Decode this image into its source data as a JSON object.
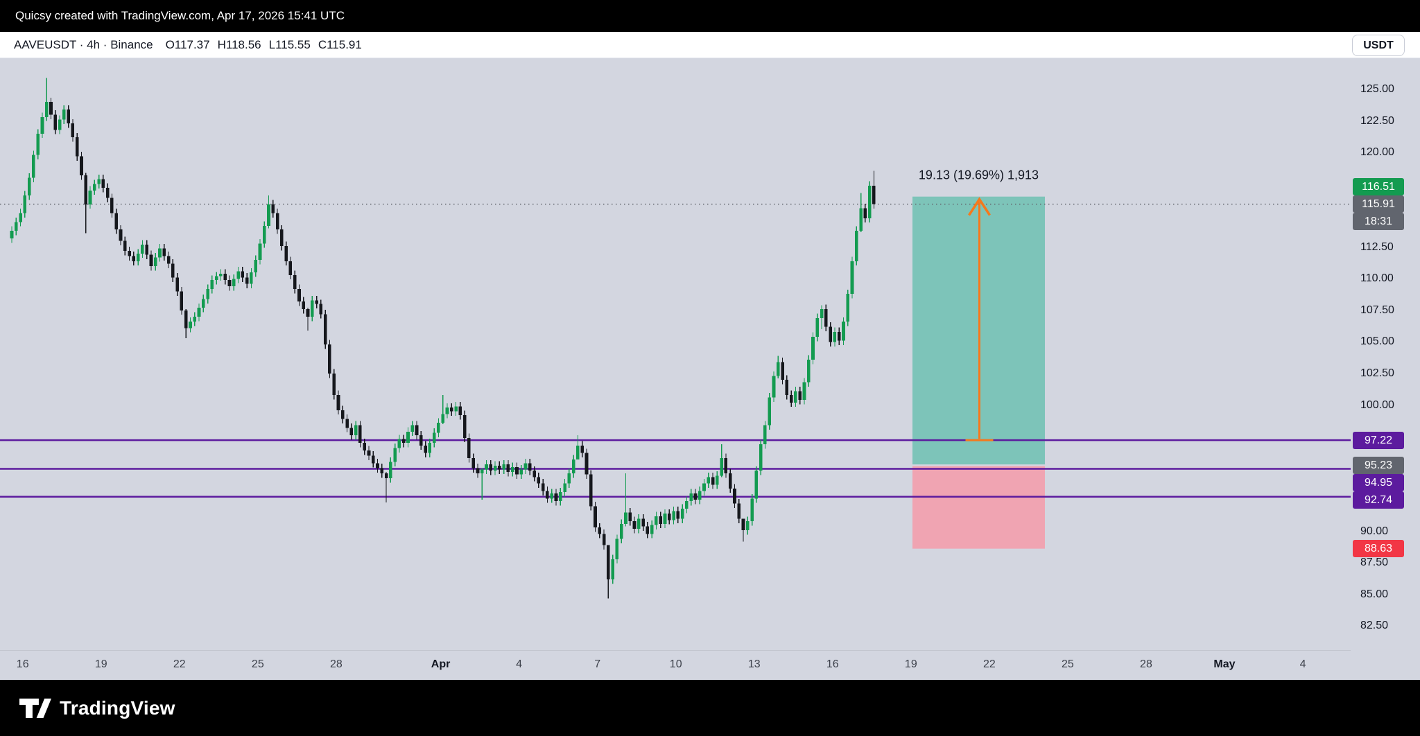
{
  "top_bar": {
    "text": "Quicsy created with TradingView.com, Apr 17, 2026 15:41 UTC"
  },
  "legend": {
    "symbol_line": "AAVEUSDT · 4h · Binance",
    "o": "O117.37",
    "h": "H118.56",
    "l": "L115.55",
    "c": "C115.91"
  },
  "currency_button": "USDT",
  "footer": {
    "brand": "TradingView"
  },
  "colors": {
    "background": "#d3d6e0",
    "up_candle": "#139b50",
    "down_candle": "#15171c",
    "level_purple": "#5c1b9e",
    "profit_zone": "#7dc4b9",
    "loss_zone": "#f0a4b2",
    "arrow_orange": "#f5791d",
    "green_badge": "#139b50",
    "gray_badge": "#61656e",
    "red_badge": "#f23645",
    "text": "#131722"
  },
  "chart_data": {
    "type": "candlestick",
    "title": "AAVEUSDT · 4h · Binance",
    "symbol": "AAVEUSDT",
    "interval": "4h",
    "exchange": "Binance",
    "ohlc_display": {
      "open": "117.37",
      "high": "118.56",
      "low": "115.55",
      "close": "115.91"
    },
    "ylim": [
      81.5,
      127
    ],
    "grid": false,
    "legend_position": "top-left",
    "first_open": 113.2,
    "default_wick": 0.35,
    "closes": [
      113.8,
      114.5,
      115.2,
      116.6,
      118.0,
      119.8,
      121.5,
      122.8,
      124.0,
      123.0,
      121.8,
      122.6,
      123.4,
      122.3,
      121.2,
      119.7,
      118.2,
      115.9,
      117.0,
      117.5,
      117.9,
      117.2,
      116.4,
      115.2,
      113.9,
      113.0,
      112.2,
      111.8,
      111.4,
      112.0,
      112.7,
      111.9,
      111.0,
      111.7,
      112.4,
      111.8,
      111.2,
      110.1,
      109.0,
      107.5,
      106.1,
      106.6,
      107.0,
      107.7,
      108.4,
      109.2,
      109.9,
      110.2,
      110.4,
      109.9,
      109.4,
      110.0,
      110.6,
      110.1,
      109.6,
      110.5,
      111.5,
      112.8,
      114.2,
      115.9,
      115.2,
      113.9,
      112.6,
      111.4,
      110.3,
      109.2,
      108.2,
      107.6,
      107.0,
      108.3,
      108.0,
      107.2,
      104.8,
      102.5,
      100.8,
      99.6,
      98.9,
      98.2,
      97.6,
      98.4,
      97.0,
      96.4,
      96.0,
      95.4,
      95.0,
      94.6,
      94.2,
      95.5,
      96.6,
      97.3,
      97.0,
      97.9,
      98.4,
      97.6,
      96.8,
      96.2,
      97.0,
      97.8,
      98.6,
      99.3,
      99.8,
      99.5,
      99.9,
      99.2,
      97.4,
      95.8,
      95.0,
      94.6,
      94.9,
      95.3,
      94.8,
      95.2,
      94.9,
      95.3,
      94.7,
      95.1,
      94.5,
      94.9,
      95.4,
      94.8,
      94.3,
      93.8,
      93.2,
      92.6,
      93.0,
      92.4,
      93.1,
      93.8,
      94.6,
      95.7,
      96.8,
      96.2,
      94.5,
      92.0,
      90.3,
      89.8,
      88.9,
      86.2,
      87.8,
      89.4,
      90.6,
      91.5,
      90.8,
      90.2,
      91.0,
      90.4,
      89.8,
      90.5,
      91.2,
      90.6,
      91.4,
      90.9,
      91.6,
      91.0,
      91.8,
      92.4,
      93.0,
      92.5,
      93.2,
      93.8,
      94.3,
      93.7,
      94.4,
      95.8,
      94.6,
      93.4,
      92.2,
      91.0,
      90.1,
      90.8,
      92.6,
      94.8,
      96.9,
      98.4,
      100.6,
      102.3,
      103.4,
      102.0,
      100.8,
      100.2,
      101.1,
      100.4,
      101.8,
      103.6,
      105.4,
      106.9,
      107.6,
      106.2,
      105.0,
      105.8,
      105.1,
      106.6,
      108.8,
      111.4,
      113.8,
      115.6,
      114.8,
      117.37,
      115.91
    ],
    "wick_overrides": {
      "8": [
        125.9,
        122.5
      ],
      "17": [
        118.4,
        113.6
      ],
      "40": [
        107.6,
        105.3
      ],
      "59": [
        116.6,
        114.0
      ],
      "68": [
        107.7,
        105.9
      ],
      "86": [
        94.7,
        92.3
      ],
      "99": [
        100.8,
        98.5
      ],
      "108": [
        95.0,
        92.5
      ],
      "130": [
        97.6,
        95.9
      ],
      "137": [
        88.9,
        84.7
      ],
      "141": [
        94.6,
        90.4
      ],
      "163": [
        96.9,
        94.3
      ],
      "168": [
        90.9,
        89.2
      ],
      "176": [
        103.9,
        102.1
      ],
      "186": [
        107.9,
        106.0
      ],
      "195": [
        116.8,
        113.7
      ],
      "198": [
        118.56,
        115.55
      ]
    },
    "horizontal_levels": [
      97.22,
      94.95,
      92.74
    ],
    "last_price_line": 115.91,
    "position_tool": {
      "label": "19.13 (19.69%) 1,913",
      "zone_top_price": 116.51,
      "entry_price": 95.23,
      "stop_price": 88.63,
      "arrow_base_price": 97.22,
      "arrow_tip_price": 116.3
    },
    "y_axis_ticks": [
      {
        "price": 125,
        "label": "125.00"
      },
      {
        "price": 122.5,
        "label": "122.50"
      },
      {
        "price": 120,
        "label": "120.00"
      },
      {
        "price": 112.5,
        "label": "112.50"
      },
      {
        "price": 110,
        "label": "110.00"
      },
      {
        "price": 107.5,
        "label": "107.50"
      },
      {
        "price": 105,
        "label": "105.00"
      },
      {
        "price": 102.5,
        "label": "102.50"
      },
      {
        "price": 100,
        "label": "100.00"
      },
      {
        "price": 90,
        "label": "90.00"
      },
      {
        "price": 87.5,
        "label": "87.50"
      },
      {
        "price": 85,
        "label": "85.00"
      },
      {
        "price": 82.5,
        "label": "82.50"
      }
    ],
    "x_axis_ticks": [
      {
        "i": 2.5,
        "label": "16",
        "bold": false
      },
      {
        "i": 20.5,
        "label": "19",
        "bold": false
      },
      {
        "i": 38.5,
        "label": "22",
        "bold": false
      },
      {
        "i": 56.5,
        "label": "25",
        "bold": false
      },
      {
        "i": 74.5,
        "label": "28",
        "bold": false
      },
      {
        "i": 98.5,
        "label": "Apr",
        "bold": true
      },
      {
        "i": 116.5,
        "label": "4",
        "bold": false
      },
      {
        "i": 134.5,
        "label": "7",
        "bold": false
      },
      {
        "i": 152.5,
        "label": "10",
        "bold": false
      },
      {
        "i": 170.5,
        "label": "13",
        "bold": false
      },
      {
        "i": 188.5,
        "label": "16",
        "bold": false
      },
      {
        "i": 206.5,
        "label": "19",
        "bold": false
      },
      {
        "i": 224.5,
        "label": "22",
        "bold": false
      },
      {
        "i": 242.5,
        "label": "25",
        "bold": false
      },
      {
        "i": 260.5,
        "label": "28",
        "bold": false
      },
      {
        "i": 278.5,
        "label": "May",
        "bold": true
      },
      {
        "i": 296.5,
        "label": "4",
        "bold": false
      }
    ],
    "price_badges": [
      {
        "name": "target-price-badge",
        "text": "116.51",
        "price": 116.51,
        "offset": -14,
        "type": "green"
      },
      {
        "name": "last-price-badge",
        "text": "115.91",
        "price": 115.91,
        "offset": 0,
        "type": "gray"
      },
      {
        "name": "countdown-badge",
        "text": "18:31",
        "price": 115.91,
        "offset": 25,
        "type": "gray"
      },
      {
        "name": "level-97-22-badge",
        "text": "97.22",
        "price": 97.22,
        "offset": 0,
        "type": "purple"
      },
      {
        "name": "entry-price-badge",
        "text": "95.23",
        "price": 95.23,
        "offset": 0,
        "type": "gray"
      },
      {
        "name": "level-94-95-badge",
        "text": "94.95",
        "price": 94.95,
        "offset": 20,
        "type": "purple"
      },
      {
        "name": "level-92-74-badge",
        "text": "92.74",
        "price": 92.74,
        "offset": 5,
        "type": "purple"
      },
      {
        "name": "stop-price-badge",
        "text": "88.63",
        "price": 88.63,
        "offset": 0,
        "type": "red"
      }
    ]
  }
}
